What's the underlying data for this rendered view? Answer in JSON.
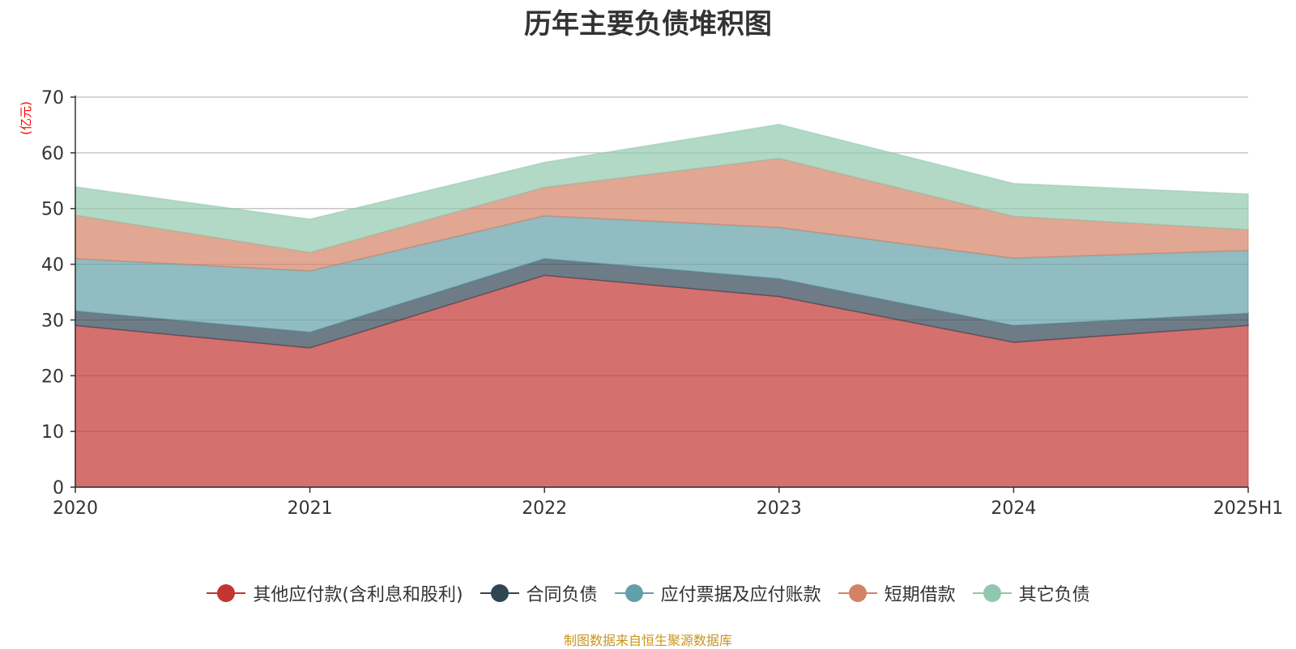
{
  "chart_data": {
    "type": "area",
    "stacked": true,
    "title": "历年主要负债堆积图",
    "unit_label": "(亿元)",
    "categories": [
      "2020",
      "2021",
      "2022",
      "2023",
      "2024",
      "2025H1"
    ],
    "ylim": [
      0,
      70
    ],
    "yticks": [
      0,
      10,
      20,
      30,
      40,
      50,
      60,
      70
    ],
    "grid": true,
    "legend_position": "bottom",
    "series": [
      {
        "name": "其他应付款(含利息和股利)",
        "color": "#c23531",
        "values": [
          29.0,
          25.0,
          38.0,
          34.2,
          26.0,
          29.0
        ]
      },
      {
        "name": "合同负债",
        "color": "#2f4554",
        "values": [
          2.6,
          2.8,
          3.0,
          3.2,
          3.0,
          2.2
        ]
      },
      {
        "name": "应付票据及应付账款",
        "color": "#61a0a8",
        "values": [
          9.4,
          11.0,
          7.7,
          9.2,
          12.1,
          11.3
        ]
      },
      {
        "name": "短期借款",
        "color": "#d48265",
        "values": [
          7.8,
          3.3,
          5.1,
          12.4,
          7.5,
          3.7
        ]
      },
      {
        "name": "其它负债",
        "color": "#91c7ae",
        "values": [
          5.1,
          6.0,
          4.5,
          6.1,
          5.9,
          6.4
        ]
      }
    ]
  },
  "source_note": "制图数据来自恒生聚源数据库"
}
